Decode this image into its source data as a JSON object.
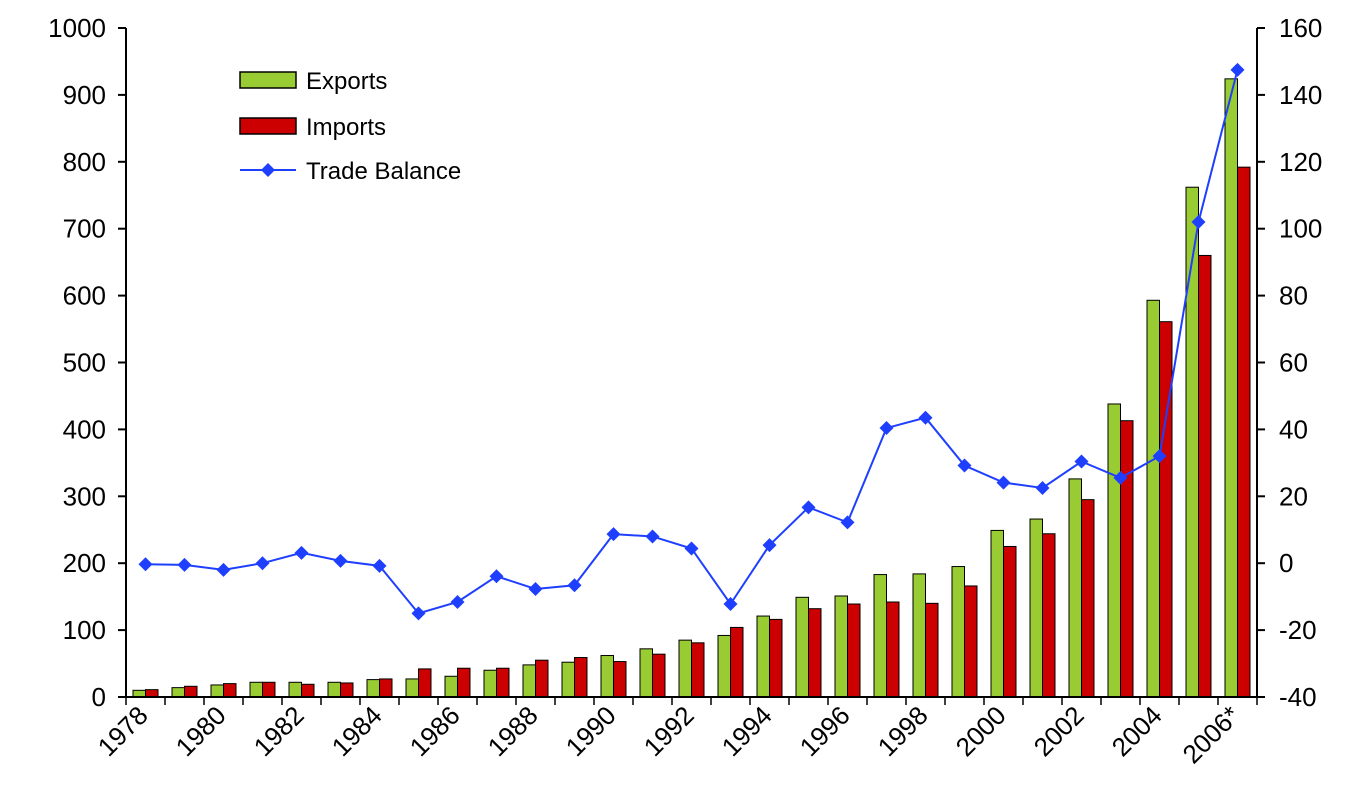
{
  "chart_data": {
    "type": "bar",
    "x": [
      "1978",
      "1979",
      "1980",
      "1981",
      "1982",
      "1983",
      "1984",
      "1985",
      "1986",
      "1987",
      "1988",
      "1989",
      "1990",
      "1991",
      "1992",
      "1993",
      "1994",
      "1995",
      "1996",
      "1997",
      "1998",
      "1999",
      "2000",
      "2001",
      "2002",
      "2003",
      "2004",
      "2005",
      "2006*"
    ],
    "xtick_labels": [
      "1978",
      "1980",
      "1982",
      "1984",
      "1986",
      "1988",
      "1990",
      "1992",
      "1994",
      "1996",
      "1998",
      "2000",
      "2002",
      "2004",
      "2006*"
    ],
    "series": [
      {
        "name": "Exports",
        "type": "bar",
        "axis": "left",
        "color": "#99cc33",
        "values": [
          10,
          14,
          18,
          22,
          22,
          22,
          26,
          27,
          31,
          40,
          48,
          52,
          62,
          72,
          85,
          92,
          121,
          149,
          151,
          183,
          184,
          195,
          249,
          266,
          326,
          438,
          593,
          762,
          924
        ]
      },
      {
        "name": "Imports",
        "type": "bar",
        "axis": "left",
        "color": "#cc0000",
        "values": [
          11,
          16,
          20,
          22,
          19,
          21,
          27,
          42,
          43,
          43,
          55,
          59,
          53,
          64,
          81,
          104,
          116,
          132,
          139,
          142,
          140,
          166,
          225,
          244,
          295,
          413,
          561,
          660,
          792
        ]
      },
      {
        "name": "Trade Balance",
        "type": "line",
        "axis": "right",
        "color": "#1f3fff",
        "values": [
          -0.3,
          -0.5,
          -2.0,
          0.0,
          3.1,
          0.7,
          -0.8,
          -15.0,
          -11.6,
          -3.9,
          -7.7,
          -6.6,
          8.7,
          8.0,
          4.4,
          -12.2,
          5.4,
          16.7,
          12.2,
          40.4,
          43.5,
          29.2,
          24.1,
          22.5,
          30.4,
          25.5,
          32.0,
          102.0,
          147.5
        ]
      }
    ],
    "y_left": {
      "lim": [
        0,
        1000
      ],
      "ticks": [
        0,
        100,
        200,
        300,
        400,
        500,
        600,
        700,
        800,
        900,
        1000
      ]
    },
    "y_right": {
      "lim": [
        -40,
        160
      ],
      "ticks": [
        -40,
        -20,
        0,
        20,
        40,
        60,
        80,
        100,
        120,
        140,
        160
      ]
    },
    "legend": {
      "position": "top-left",
      "entries": [
        "Exports",
        "Imports",
        "Trade Balance"
      ]
    },
    "grid": false,
    "title": "",
    "xlabel": "",
    "ylabel": ""
  }
}
